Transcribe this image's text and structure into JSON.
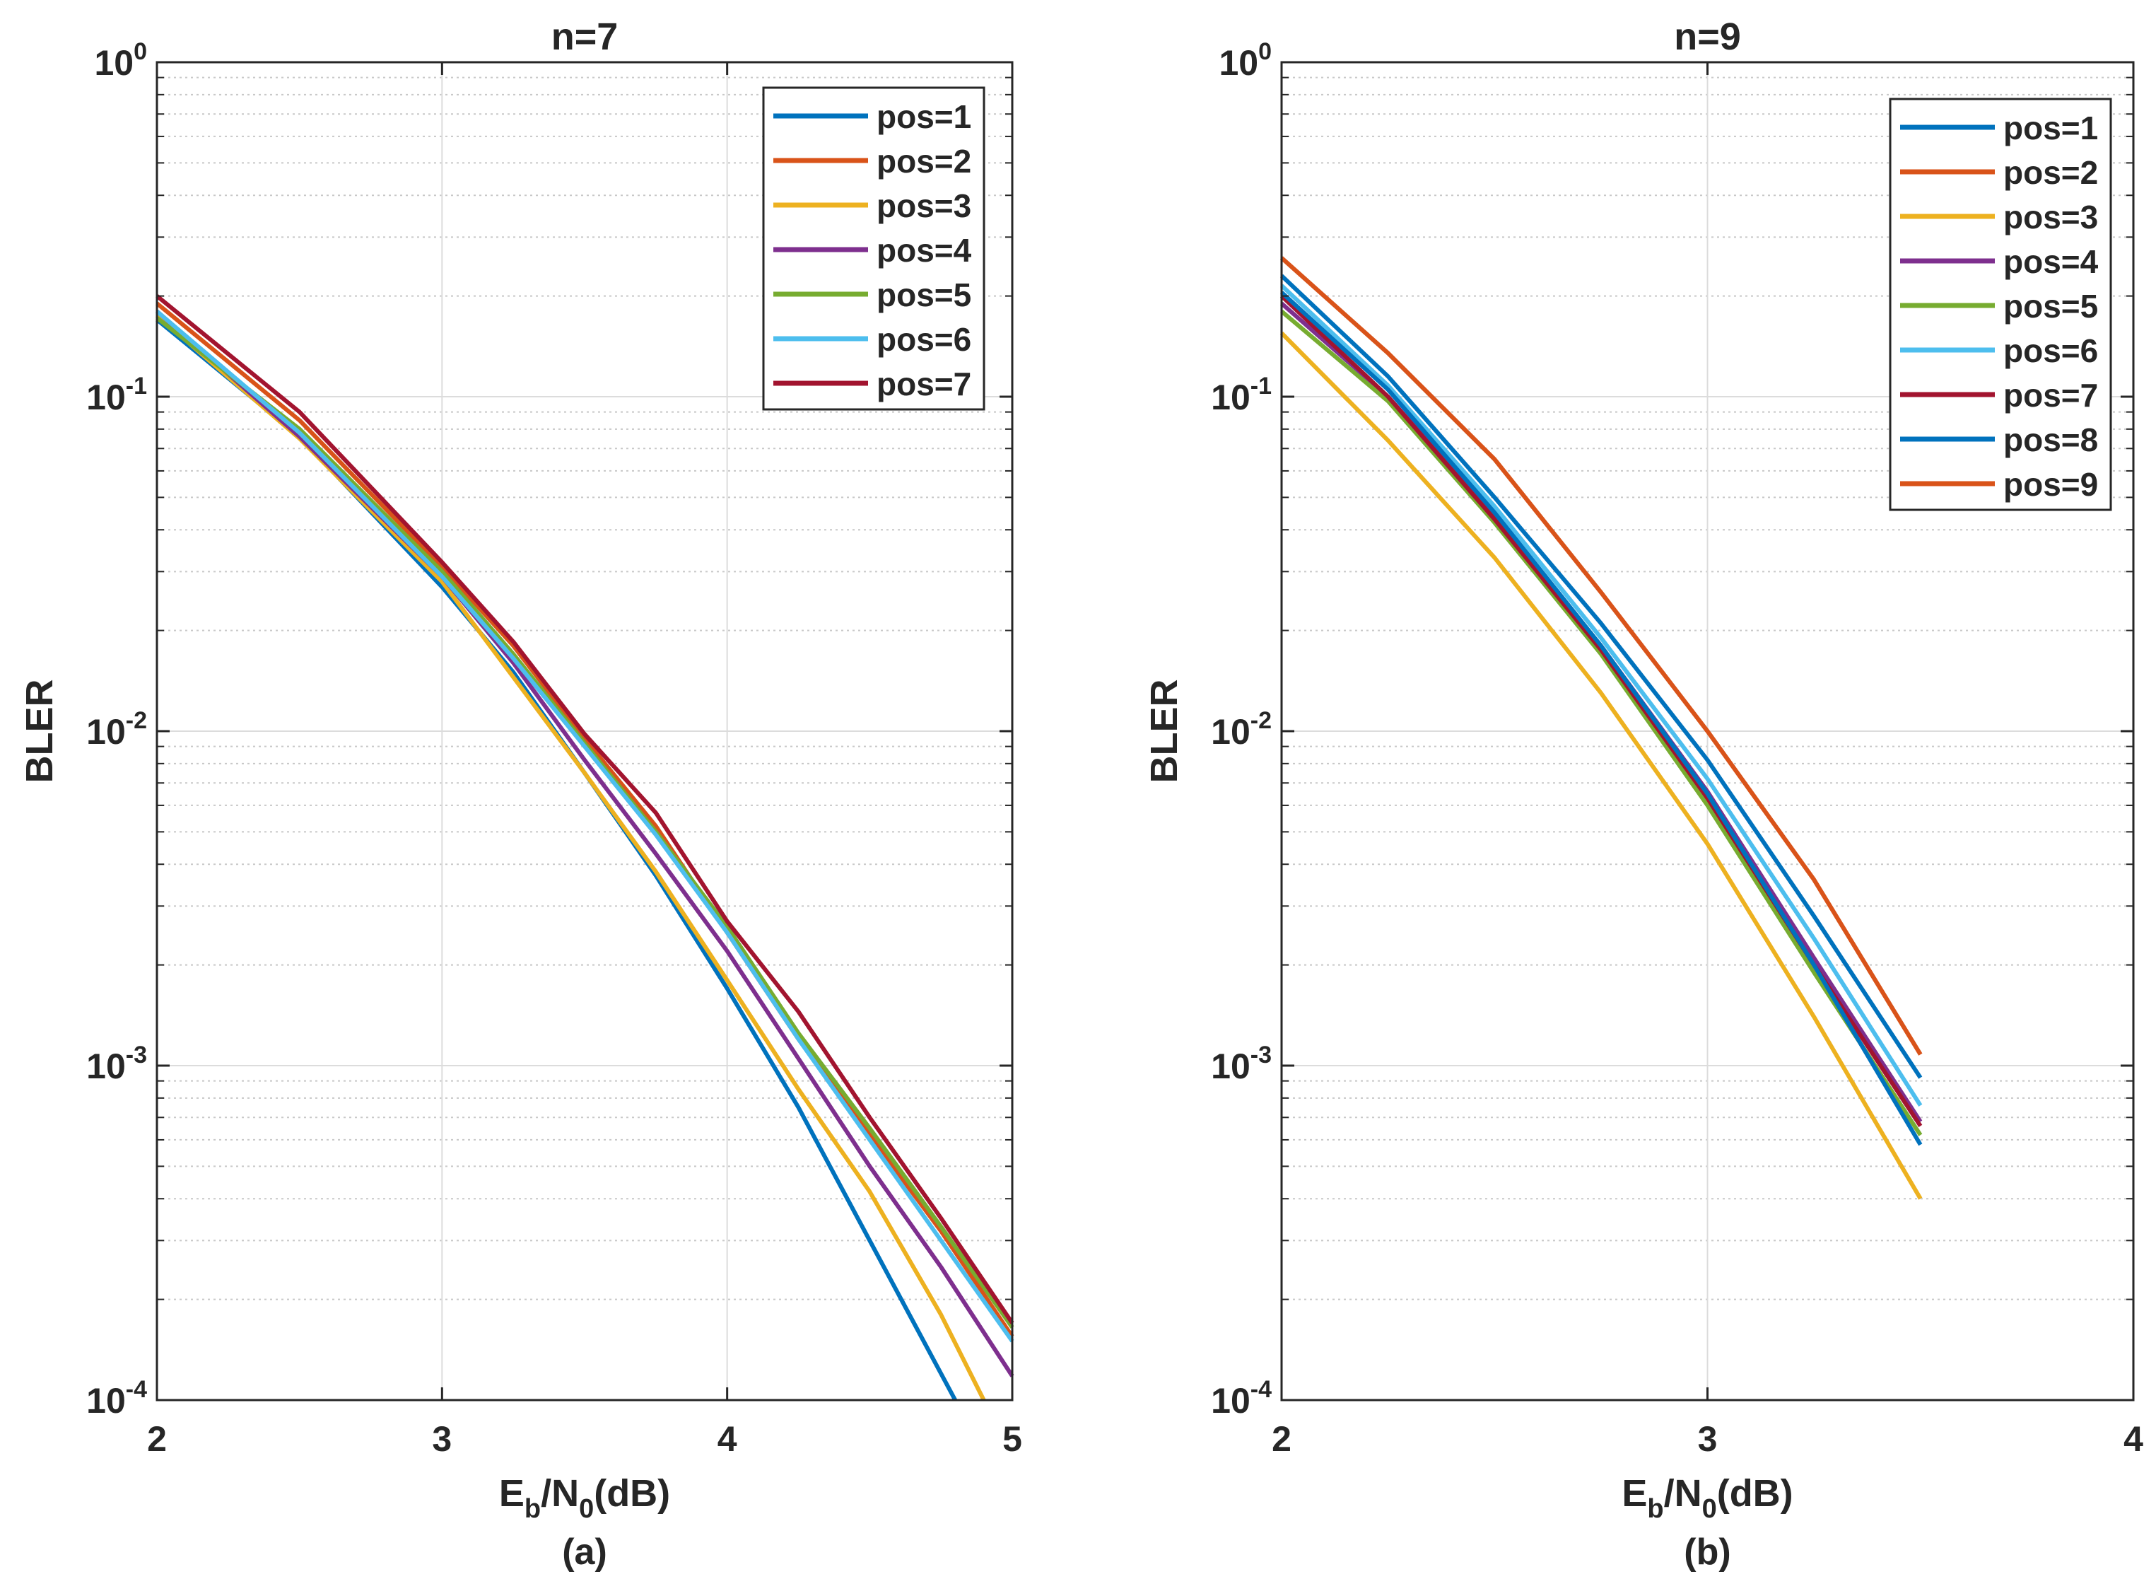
{
  "chart_data": [
    {
      "type": "line",
      "title": "n=7",
      "xlabel": {
        "main": "E",
        "sub1": "b",
        "mid": "/N",
        "sub2": "0",
        "tail": "(dB)"
      },
      "ylabel": "BLER",
      "caption": "(a)",
      "xlim": [
        2,
        5
      ],
      "ylim": [
        0.0001,
        1
      ],
      "yscale": "log",
      "grid": true,
      "legend_position": "top-right",
      "x_ticks": [
        "2",
        "3",
        "4",
        "5"
      ],
      "y_ticks": [
        {
          "base": "10",
          "exp": "0"
        },
        {
          "base": "10",
          "exp": "-1"
        },
        {
          "base": "10",
          "exp": "-2"
        },
        {
          "base": "10",
          "exp": "-3"
        },
        {
          "base": "10",
          "exp": "-4"
        }
      ],
      "series": [
        {
          "name": "pos=1",
          "color": "#0072BD",
          "x": [
            2,
            2.5,
            3,
            3.25,
            3.5,
            3.75,
            4,
            4.25,
            4.5,
            4.75,
            4.8
          ],
          "y": [
            0.17,
            0.076,
            0.027,
            0.015,
            0.0075,
            0.0037,
            0.0017,
            0.00075,
            0.0003,
            0.00012,
            0.0001
          ]
        },
        {
          "name": "pos=2",
          "color": "#D95319",
          "x": [
            2,
            2.5,
            3,
            3.25,
            3.5,
            3.75,
            4,
            4.25,
            4.5,
            4.75,
            5
          ],
          "y": [
            0.19,
            0.085,
            0.031,
            0.018,
            0.0095,
            0.0052,
            0.0025,
            0.0012,
            0.00062,
            0.00032,
            0.000155
          ]
        },
        {
          "name": "pos=3",
          "color": "#EDB120",
          "x": [
            2,
            2.5,
            3,
            3.25,
            3.5,
            3.75,
            4,
            4.25,
            4.5,
            4.75,
            4.9
          ],
          "y": [
            0.175,
            0.075,
            0.028,
            0.0145,
            0.0075,
            0.0038,
            0.0018,
            0.00085,
            0.00042,
            0.00018,
            0.0001
          ]
        },
        {
          "name": "pos=4",
          "color": "#7E2F8E",
          "x": [
            2,
            2.5,
            3,
            3.25,
            3.5,
            3.75,
            4,
            4.25,
            4.5,
            4.75,
            5
          ],
          "y": [
            0.18,
            0.076,
            0.029,
            0.016,
            0.0082,
            0.0043,
            0.0022,
            0.00105,
            0.0005,
            0.00025,
            0.000118
          ]
        },
        {
          "name": "pos=5",
          "color": "#77AC30",
          "x": [
            2,
            2.5,
            3,
            3.25,
            3.5,
            3.75,
            4,
            4.25,
            4.5,
            4.75,
            5
          ],
          "y": [
            0.172,
            0.08,
            0.03,
            0.017,
            0.0092,
            0.005,
            0.0026,
            0.00125,
            0.00065,
            0.00033,
            0.000165
          ]
        },
        {
          "name": "pos=6",
          "color": "#4DBEEE",
          "x": [
            2,
            2.5,
            3,
            3.25,
            3.5,
            3.75,
            4,
            4.25,
            4.5,
            4.75,
            5
          ],
          "y": [
            0.18,
            0.078,
            0.029,
            0.0165,
            0.009,
            0.0049,
            0.0025,
            0.0012,
            0.0006,
            0.0003,
            0.00015
          ]
        },
        {
          "name": "pos=7",
          "color": "#A2142F",
          "x": [
            2,
            2.5,
            3,
            3.25,
            3.5,
            3.75,
            4,
            4.25,
            4.5,
            4.75,
            5
          ],
          "y": [
            0.2,
            0.09,
            0.032,
            0.0185,
            0.0098,
            0.0057,
            0.0027,
            0.00145,
            0.0007,
            0.00035,
            0.00017
          ]
        }
      ]
    },
    {
      "type": "line",
      "title": "n=9",
      "xlabel": {
        "main": "E",
        "sub1": "b",
        "mid": "/N",
        "sub2": "0",
        "tail": "(dB)"
      },
      "ylabel": "BLER",
      "caption": "(b)",
      "xlim": [
        2,
        4
      ],
      "ylim": [
        0.0001,
        1
      ],
      "yscale": "log",
      "grid": true,
      "legend_position": "top-right",
      "x_ticks": [
        "2",
        "3",
        "4"
      ],
      "y_ticks": [
        {
          "base": "10",
          "exp": "0"
        },
        {
          "base": "10",
          "exp": "-1"
        },
        {
          "base": "10",
          "exp": "-2"
        },
        {
          "base": "10",
          "exp": "-3"
        },
        {
          "base": "10",
          "exp": "-4"
        }
      ],
      "series": [
        {
          "name": "pos=1",
          "color": "#0072BD",
          "x": [
            2,
            2.25,
            2.5,
            2.75,
            3,
            3.25,
            3.5
          ],
          "y": [
            0.23,
            0.115,
            0.05,
            0.021,
            0.0082,
            0.0028,
            0.00092
          ]
        },
        {
          "name": "pos=2",
          "color": "#D95319",
          "x": [
            2,
            2.25,
            2.5,
            2.75,
            3,
            3.25,
            3.5
          ],
          "y": [
            0.26,
            0.135,
            0.065,
            0.026,
            0.01,
            0.0036,
            0.00108
          ]
        },
        {
          "name": "pos=3",
          "color": "#EDB120",
          "x": [
            2,
            2.25,
            2.5,
            2.75,
            3,
            3.25,
            3.5
          ],
          "y": [
            0.155,
            0.074,
            0.033,
            0.013,
            0.0046,
            0.0014,
            0.0004
          ]
        },
        {
          "name": "pos=4",
          "color": "#7E2F8E",
          "x": [
            2,
            2.25,
            2.5,
            2.75,
            3,
            3.25,
            3.5
          ],
          "y": [
            0.19,
            0.1,
            0.044,
            0.018,
            0.0066,
            0.0021,
            0.00068
          ]
        },
        {
          "name": "pos=5",
          "color": "#77AC30",
          "x": [
            2,
            2.25,
            2.5,
            2.75,
            3,
            3.25,
            3.5
          ],
          "y": [
            0.18,
            0.097,
            0.042,
            0.017,
            0.006,
            0.0019,
            0.00062
          ]
        },
        {
          "name": "pos=6",
          "color": "#4DBEEE",
          "x": [
            2,
            2.25,
            2.5,
            2.75,
            3,
            3.25,
            3.5
          ],
          "y": [
            0.215,
            0.108,
            0.047,
            0.019,
            0.0072,
            0.0024,
            0.00076
          ]
        },
        {
          "name": "pos=7",
          "color": "#A2142F",
          "x": [
            2,
            2.25,
            2.5,
            2.75,
            3,
            3.25,
            3.5
          ],
          "y": [
            0.2,
            0.1,
            0.043,
            0.0175,
            0.0063,
            0.002,
            0.00066
          ]
        },
        {
          "name": "pos=8",
          "color": "#0072BD",
          "x": [
            2,
            2.25,
            2.5,
            2.75,
            3,
            3.25,
            3.5
          ],
          "y": [
            0.205,
            0.105,
            0.045,
            0.018,
            0.0065,
            0.002,
            0.00058
          ]
        },
        {
          "name": "pos=9",
          "color": "#D95319",
          "x": [
            2,
            2.25,
            2.5,
            2.75,
            3,
            3.25,
            3.5
          ],
          "y": [
            0.26,
            0.135,
            0.065,
            0.026,
            0.01,
            0.0036,
            0.00108
          ]
        }
      ]
    }
  ]
}
